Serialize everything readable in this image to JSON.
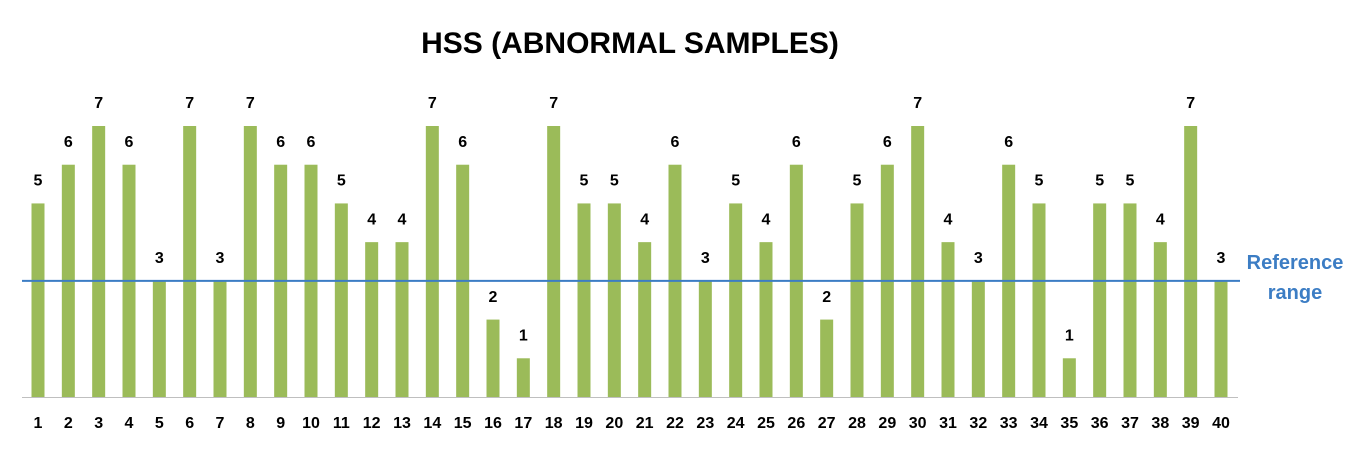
{
  "chart_data": {
    "type": "bar",
    "title": "HSS (ABNORMAL SAMPLES)",
    "categories": [
      "1",
      "2",
      "3",
      "4",
      "5",
      "6",
      "7",
      "8",
      "9",
      "10",
      "11",
      "12",
      "13",
      "14",
      "15",
      "16",
      "17",
      "18",
      "19",
      "20",
      "21",
      "22",
      "23",
      "24",
      "25",
      "26",
      "27",
      "28",
      "29",
      "30",
      "31",
      "32",
      "33",
      "34",
      "35",
      "36",
      "37",
      "38",
      "39",
      "40"
    ],
    "values": [
      5,
      6,
      7,
      6,
      3,
      7,
      3,
      7,
      6,
      6,
      5,
      4,
      4,
      7,
      6,
      2,
      1,
      7,
      5,
      5,
      4,
      6,
      3,
      5,
      4,
      6,
      2,
      5,
      6,
      7,
      4,
      3,
      6,
      5,
      1,
      5,
      5,
      4,
      7,
      3
    ],
    "color": "#9bbb59",
    "reference_line": {
      "value": 3,
      "label": "Reference range",
      "color": "#3c7dc4"
    }
  }
}
